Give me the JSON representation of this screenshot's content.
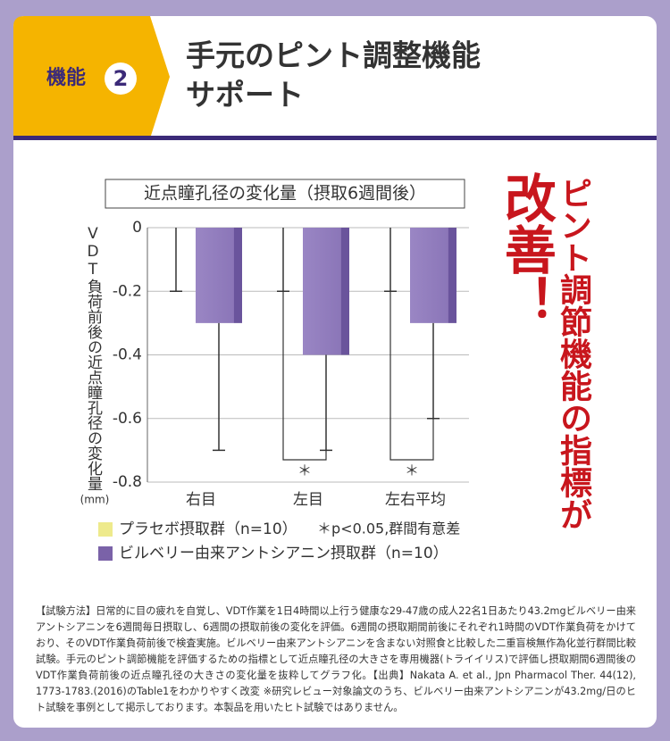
{
  "header": {
    "tag": "機能",
    "number": "2",
    "title_lines": [
      "手元のピント調整機能",
      "サポート"
    ]
  },
  "chart_data": {
    "type": "bar",
    "title": "近点瞳孔径の変化量（摂取6週間後）",
    "y_label": "VDT負荷前後の近点瞳孔径の変化量",
    "y_unit": "(mm)",
    "categories": [
      "右目",
      "左目",
      "左右平均"
    ],
    "series": [
      {
        "name": "プラセボ摂取群（n=10）",
        "color": "#eeea8c",
        "values": [
          0,
          0,
          0
        ],
        "errors": [
          0.2,
          0.2,
          0.2
        ]
      },
      {
        "name": "ビルベリー由来アントシアニン摂取群（n=10）",
        "color": "#8b76b8",
        "values": [
          -0.3,
          -0.4,
          -0.3
        ],
        "errors": [
          0.4,
          0.3,
          0.3
        ]
      }
    ],
    "significance": [
      null,
      "＊",
      "＊"
    ],
    "significance_note": "＊p<0.05,群間有意差",
    "ylim": [
      -0.8,
      0
    ],
    "yticks": [
      0,
      -0.2,
      -0.4,
      -0.6,
      -0.8
    ],
    "grid": true
  },
  "callout": {
    "line1": "ピント調節機能の指標が",
    "line2": "改善！"
  },
  "footnote": "【試験方法】日常的に目の疲れを自覚し、VDT作業を1日4時間以上行う健康な29-47歳の成人22名1日あたり43.2mgビルベリー由来アントシアニンを6週間毎日摂取し、6週間の摂取前後の変化を評価。6週間の摂取期間前後にそれぞれ1時間のVDT作業負荷をかけており、そのVDT作業負荷前後で検査実施。ビルベリー由来アントシアニンを含まない対照食と比較した二重盲検無作為化並行群間比較試験。手元のピント調節機能を評価するための指標として近点瞳孔径の大きさを専用機器(トライイリス)で評価し摂取期間6週間後のVDT作業負荷前後の近点瞳孔径の大きさの変化量を抜粋してグラフ化。【出典】Nakata A. et al., Jpn Pharmacol Ther. 44(12), 1773-1783.(2016)のTable1をわかりやすく改変 ※研究レビュー対象論文のうち、ビルベリー由来アントシアニンが43.2mg/日のヒト試験を事例として掲示しております。本製品を用いたヒト試験ではありません。"
}
